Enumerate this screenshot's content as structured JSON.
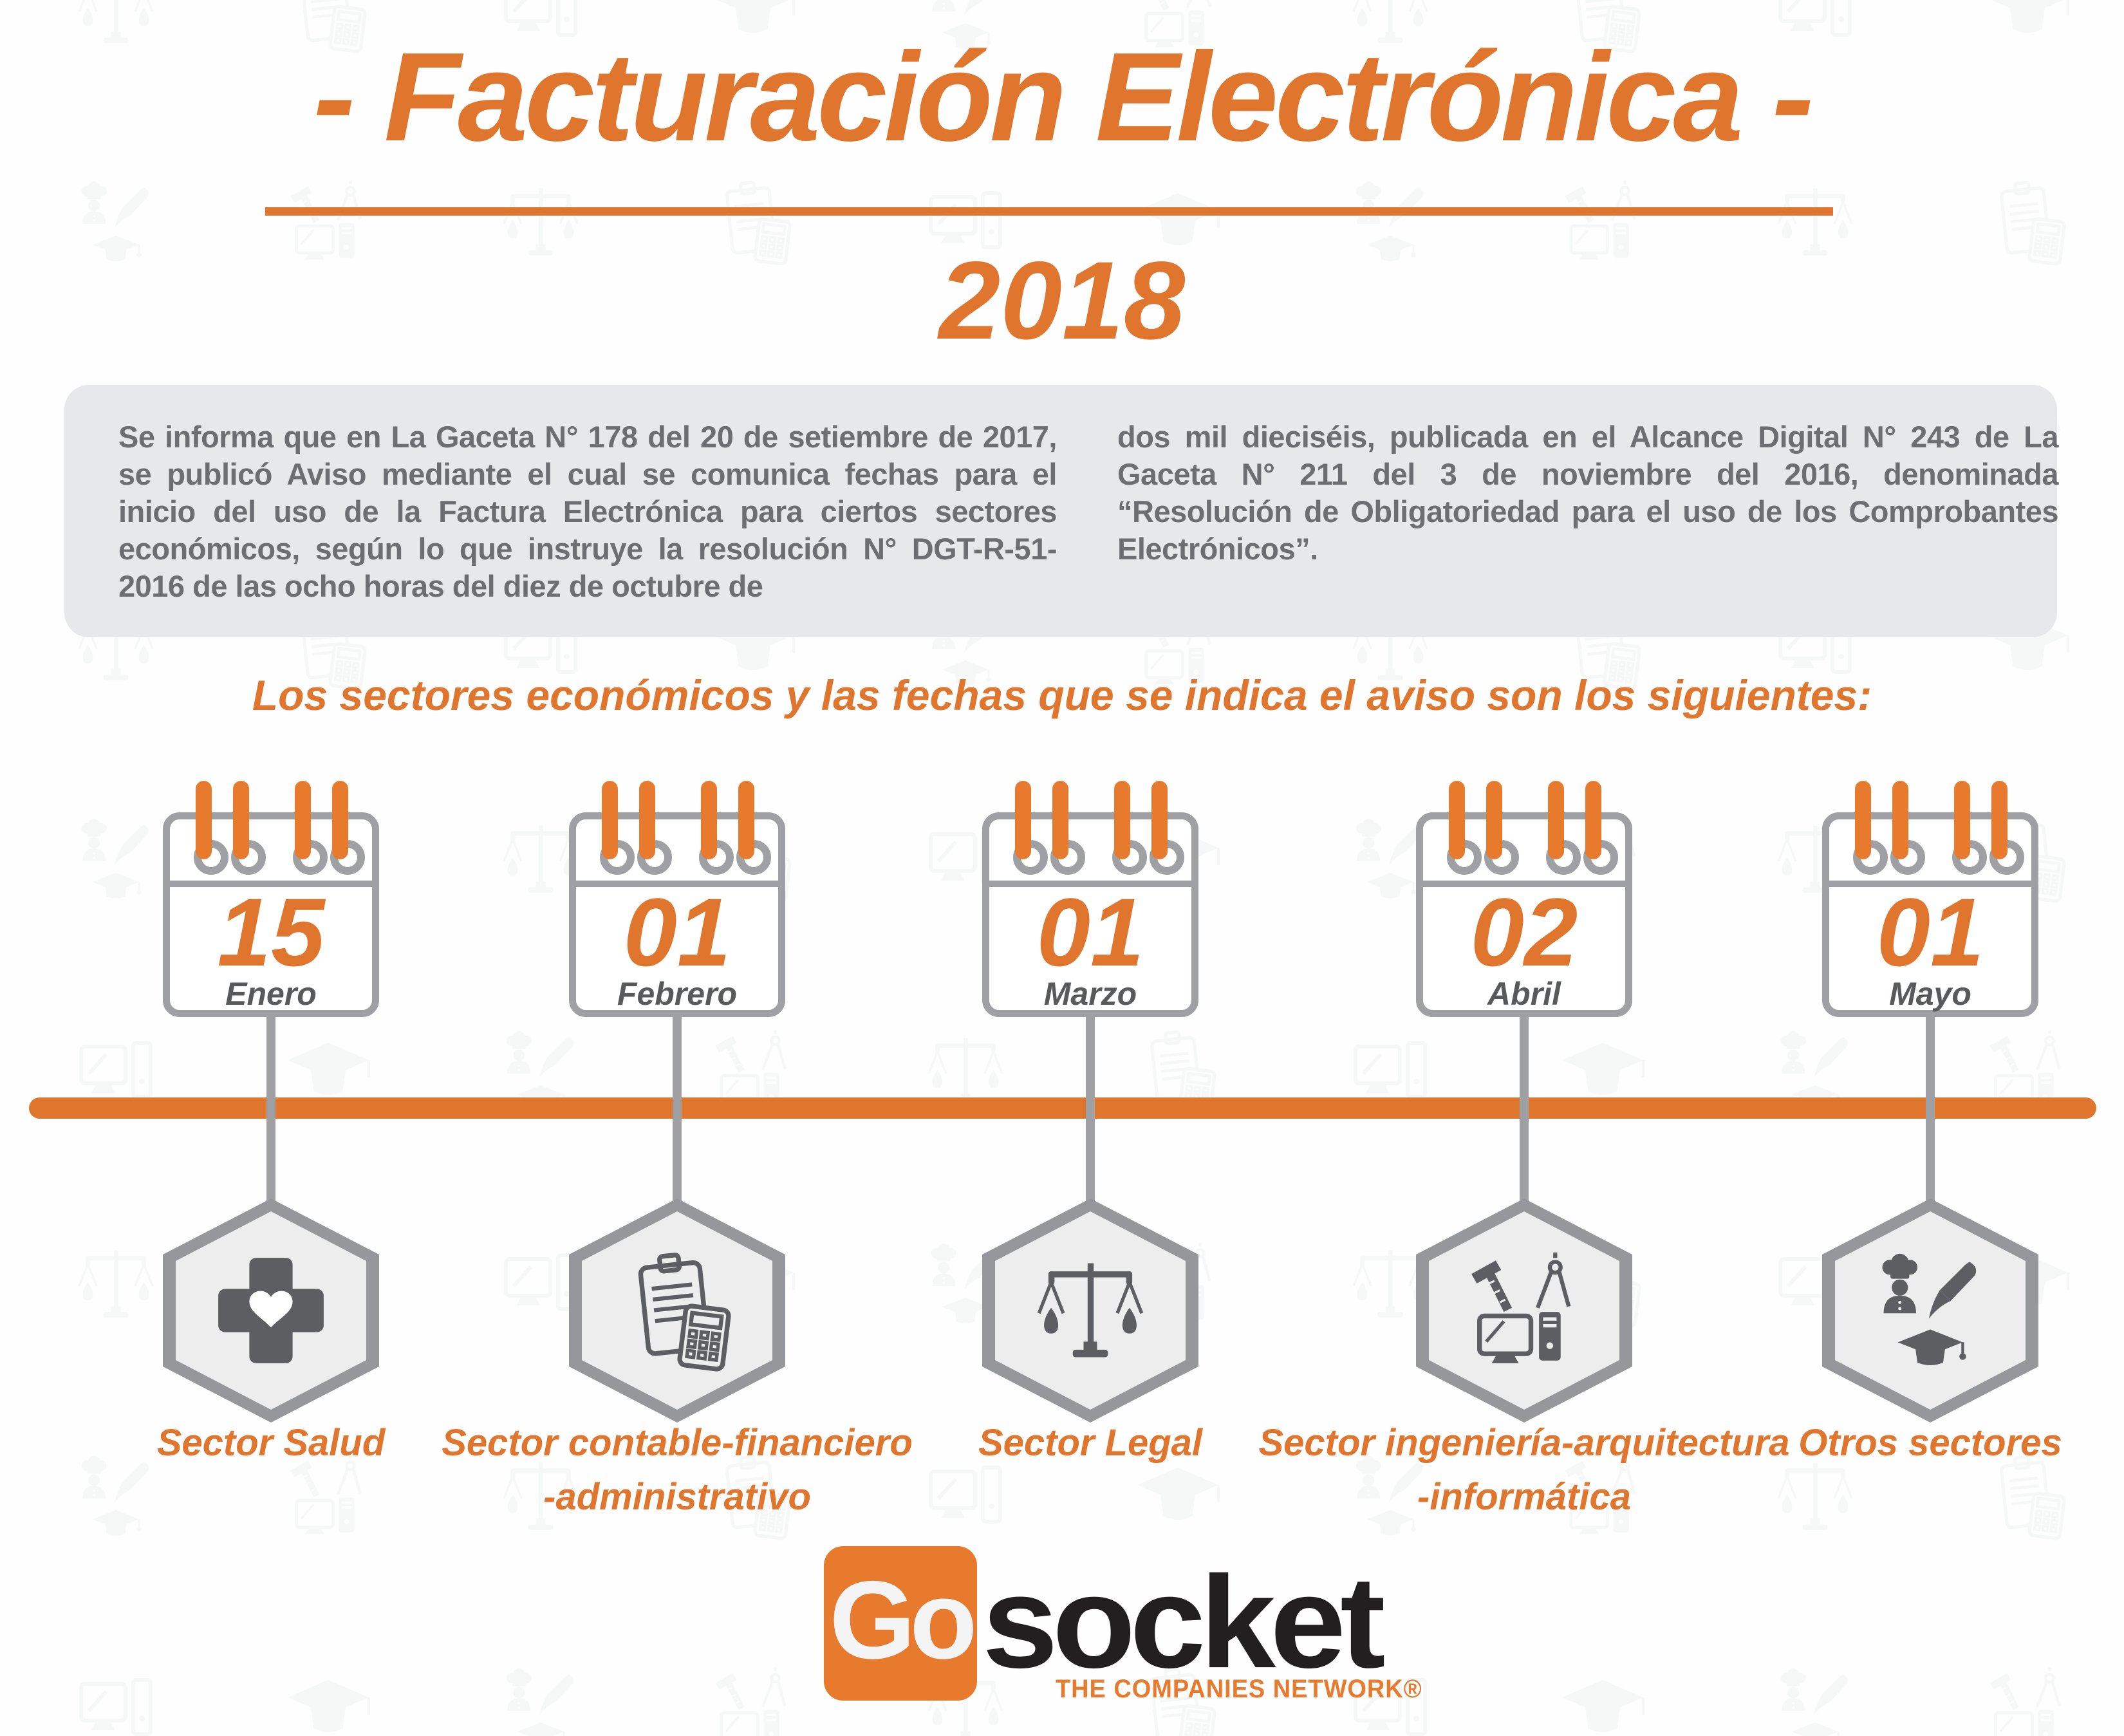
{
  "title": {
    "text": "- Facturación Electrónica -",
    "year": "2018"
  },
  "info_box": {
    "paragraph_left": "Se informa que en La Gaceta N° 178 del 20 de setiembre de 2017, se publicó Aviso mediante el cual se comunica fechas para el inicio del uso de la Factura Electrónica para ciertos sectores económicos, según lo que instruye la resolución N° DGT-R-51-2016 de las ocho horas del diez de octubre de",
    "paragraph_right": "dos mil dieciséis, publicada en el Alcance Digital N° 243 de La Gaceta N° 211 del 3 de noviembre del 2016, denominada “Resolución de Obligatoriedad para el uso de los Comprobantes Electrónicos”."
  },
  "section_heading": "Los sectores económicos y las fechas que se indica el aviso son los siguientes:",
  "timeline": {
    "items": [
      {
        "day": "15",
        "month": "Enero",
        "icon": "health-cross-icon",
        "label_line1": "Sector Salud",
        "label_line2": ""
      },
      {
        "day": "01",
        "month": "Febrero",
        "icon": "clipboard-calculator-icon",
        "label_line1": "Sector contable-financiero",
        "label_line2": "-administrativo"
      },
      {
        "day": "01",
        "month": "Marzo",
        "icon": "justice-scales-icon",
        "label_line1": "Sector Legal",
        "label_line2": ""
      },
      {
        "day": "02",
        "month": "Abril",
        "icon": "engineering-architecture-it-icon",
        "label_line1": "Sector ingeniería-arquitectura",
        "label_line2": "-informática"
      },
      {
        "day": "01",
        "month": "Mayo",
        "icon": "other-sectors-icon",
        "label_line1": "Otros sectores",
        "label_line2": ""
      }
    ]
  },
  "footer": {
    "logo_go": "Go",
    "logo_socket": "socket",
    "tagline": "THE COMPANIES NETWORK®"
  },
  "colors": {
    "orange": "#E0752D",
    "logo_orange": "#E87A2E",
    "text_gray": "#6D6E71",
    "border_gray": "#9EA0A3",
    "dark_gray": "#58595B",
    "box_bg": "#E7E8E9",
    "hex_fill": "#EDEDEE",
    "hex_border": "#95979A"
  }
}
